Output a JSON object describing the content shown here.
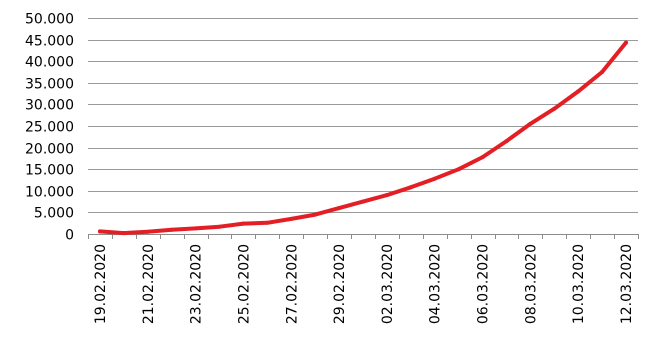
{
  "chart_data": {
    "type": "line",
    "title": "",
    "xlabel": "",
    "ylabel": "",
    "ylim": [
      0,
      50000
    ],
    "yticks": [
      0,
      5000,
      10000,
      15000,
      20000,
      25000,
      30000,
      35000,
      40000,
      45000,
      50000
    ],
    "ytick_labels": [
      "0",
      "5.000",
      "10.000",
      "15.000",
      "20.000",
      "25.000",
      "30.000",
      "35.000",
      "40.000",
      "45.000",
      "50.000"
    ],
    "grid": true,
    "legend": "none",
    "color": "#e31e24",
    "x": [
      "19.02.2020",
      "20.02.2020",
      "21.02.2020",
      "22.02.2020",
      "23.02.2020",
      "24.02.2020",
      "25.02.2020",
      "26.02.2020",
      "27.02.2020",
      "28.02.2020",
      "29.02.2020",
      "01.03.2020",
      "02.03.2020",
      "03.03.2020",
      "04.03.2020",
      "05.03.2020",
      "06.03.2020",
      "07.03.2020",
      "08.03.2020",
      "09.03.2020",
      "10.03.2020",
      "11.03.2020",
      "12.03.2020"
    ],
    "x_tick_labels": [
      "19.02.2020",
      "21.02.2020",
      "23.02.2020",
      "25.02.2020",
      "27.02.2020",
      "29.02.2020",
      "02.03.2020",
      "04.03.2020",
      "06.03.2020",
      "08.03.2020",
      "10.03.2020",
      "12.03.2020"
    ],
    "series": [
      {
        "values": [
          600,
          200,
          500,
          1000,
          1300,
          1700,
          2400,
          2600,
          3500,
          4500,
          6000,
          7500,
          9000,
          10800,
          12800,
          15000,
          17800,
          21500,
          25500,
          29000,
          33000,
          37500,
          44300
        ]
      }
    ]
  }
}
